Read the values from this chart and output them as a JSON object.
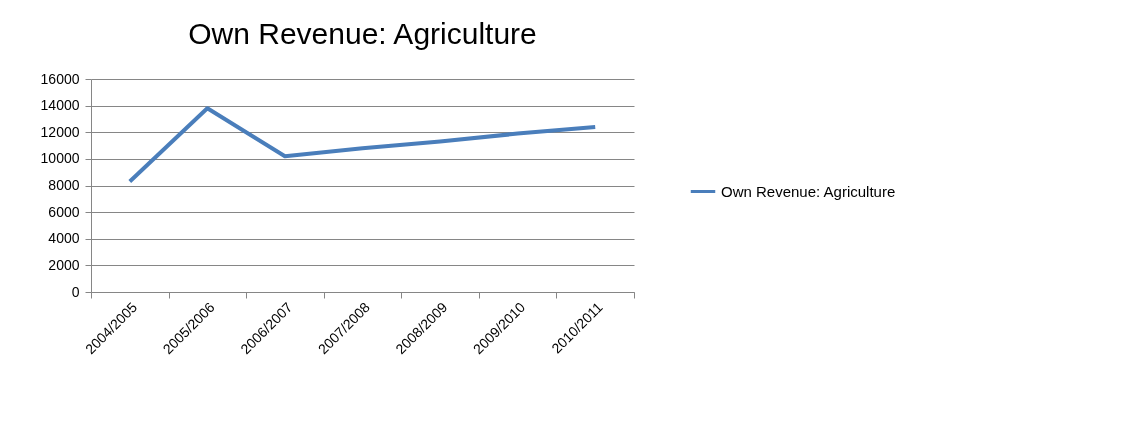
{
  "chart_data": {
    "type": "line",
    "title": "Own Revenue: Agriculture",
    "categories": [
      "2004/2005",
      "2005/2006",
      "2006/2007",
      "2007/2008",
      "2008/2009",
      "2009/2010",
      "2010/2011"
    ],
    "series": [
      {
        "name": "Own Revenue: Agriculture",
        "color": "#4a7ebb",
        "values": [
          8300,
          13800,
          10200,
          10800,
          11300,
          11900,
          12400
        ]
      }
    ],
    "ylim": [
      0,
      16000
    ],
    "yticks": [
      0,
      2000,
      4000,
      6000,
      8000,
      10000,
      12000,
      14000,
      16000
    ],
    "grid": "y",
    "legend": "right",
    "marker": "none",
    "line_style": "solid"
  }
}
